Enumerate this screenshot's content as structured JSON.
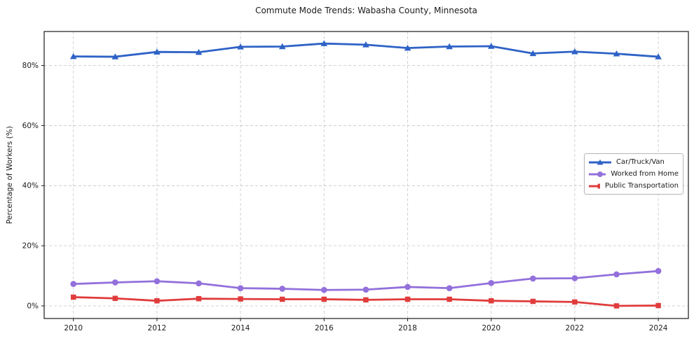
{
  "figure": {
    "title": "Commute Mode Trends: Wabasha County, Minnesota"
  },
  "chart_data": {
    "type": "line",
    "title": "Commute Mode Trends: Wabasha County, Minnesota",
    "xlabel": "",
    "ylabel": "Percentage of Workers (%)",
    "x": [
      2010,
      2011,
      2012,
      2013,
      2014,
      2015,
      2016,
      2017,
      2018,
      2019,
      2020,
      2021,
      2022,
      2023,
      2024
    ],
    "series": [
      {
        "name": "Car/Truck/Van",
        "marker": "triangle",
        "color": "#2e62c6",
        "values": [
          83.0,
          82.9,
          84.5,
          84.4,
          86.2,
          86.3,
          87.3,
          86.9,
          85.8,
          86.3,
          86.4,
          84.0,
          84.6,
          83.9,
          82.9
        ]
      },
      {
        "name": "Worked from Home",
        "marker": "circle",
        "color": "#9370db",
        "values": [
          7.3,
          7.8,
          8.2,
          7.5,
          5.9,
          5.7,
          5.3,
          5.4,
          6.3,
          5.9,
          7.6,
          9.1,
          9.2,
          10.5,
          11.6
        ]
      },
      {
        "name": "Public Transportation",
        "marker": "square",
        "color": "#e03c3c",
        "values": [
          2.9,
          2.5,
          1.7,
          2.4,
          2.3,
          2.2,
          2.2,
          2.0,
          2.2,
          2.2,
          1.7,
          1.5,
          1.3,
          0.0,
          0.1
        ]
      }
    ],
    "xticks": {
      "values": [
        2010,
        2012,
        2014,
        2016,
        2018,
        2020,
        2022,
        2024
      ],
      "labels": [
        "2010",
        "2012",
        "2014",
        "2016",
        "2018",
        "2020",
        "2022",
        "2024"
      ]
    },
    "yticks": {
      "values": [
        0,
        20,
        40,
        60,
        80
      ],
      "labels": [
        "0%",
        "20%",
        "40%",
        "60%",
        "80%"
      ]
    },
    "xlim": [
      2009.3,
      2024.72
    ],
    "ylim": [
      -4.2,
      91.3
    ],
    "grid": "dashed",
    "grid_color": "#cccccc",
    "spine_color": "#1a1a1a",
    "background": "#ffffff",
    "legend_position": "center-right"
  }
}
